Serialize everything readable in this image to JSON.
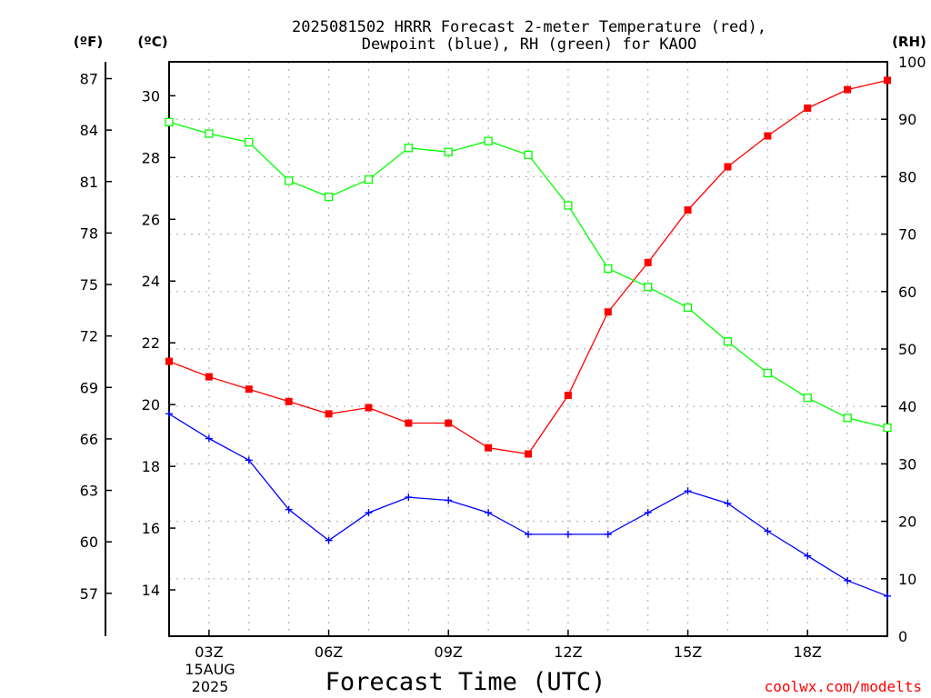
{
  "chart_data": {
    "type": "line",
    "title_line1": "2025081502 HRRR Forecast 2-meter Temperature (red),",
    "title_line2": "Dewpoint (blue), RH (green) for KAOO",
    "xlabel": "Forecast Time (UTC)",
    "credit": "coolwx.com/modelts",
    "unit_labels": {
      "fahrenheit": "(ºF)",
      "celsius": "(ºC)",
      "rh": "(RH)"
    },
    "x_hours": [
      2,
      3,
      4,
      5,
      6,
      7,
      8,
      9,
      10,
      11,
      12,
      13,
      14,
      15,
      16,
      17,
      18,
      19,
      20
    ],
    "x_range": [
      2,
      20
    ],
    "x_ticks": [
      {
        "hour": 3,
        "label": "03Z"
      },
      {
        "hour": 6,
        "label": "06Z"
      },
      {
        "hour": 9,
        "label": "09Z"
      },
      {
        "hour": 12,
        "label": "12Z"
      },
      {
        "hour": 15,
        "label": "15Z"
      },
      {
        "hour": 18,
        "label": "18Z"
      }
    ],
    "date_lines": [
      "15AUG",
      "2025"
    ],
    "celsius_axis": {
      "range": [
        12.5,
        31.1
      ],
      "ticks": [
        14,
        16,
        18,
        20,
        22,
        24,
        26,
        28,
        30
      ]
    },
    "fahrenheit_axis": {
      "ticks": [
        57,
        60,
        63,
        66,
        69,
        72,
        75,
        78,
        81,
        84,
        87
      ]
    },
    "rh_axis": {
      "range": [
        0,
        100
      ],
      "ticks": [
        0,
        10,
        20,
        30,
        40,
        50,
        60,
        70,
        80,
        90,
        100
      ]
    },
    "grid": true,
    "series": [
      {
        "name": "Temperature",
        "axis": "celsius",
        "color": "#ff0000",
        "marker": "filled-square",
        "values": [
          21.4,
          20.9,
          20.5,
          20.1,
          19.7,
          19.9,
          19.4,
          19.4,
          18.6,
          18.4,
          20.3,
          23.0,
          24.6,
          26.3,
          27.7,
          28.7,
          29.6,
          30.2,
          30.5
        ]
      },
      {
        "name": "Dewpoint",
        "axis": "celsius",
        "color": "#0000ff",
        "marker": "plus",
        "values": [
          19.7,
          18.9,
          18.2,
          16.6,
          15.6,
          16.5,
          17.0,
          16.9,
          16.5,
          15.8,
          15.8,
          15.8,
          16.5,
          17.2,
          16.8,
          15.9,
          15.1,
          14.3,
          13.8
        ]
      },
      {
        "name": "RH",
        "axis": "rh",
        "color": "#00ff00",
        "marker": "open-square",
        "values": [
          89.5,
          87.5,
          86.0,
          79.3,
          76.5,
          79.5,
          85.0,
          84.3,
          86.2,
          83.8,
          75.0,
          64.0,
          60.8,
          57.2,
          51.3,
          45.8,
          41.5,
          38.0,
          36.3
        ]
      }
    ]
  }
}
